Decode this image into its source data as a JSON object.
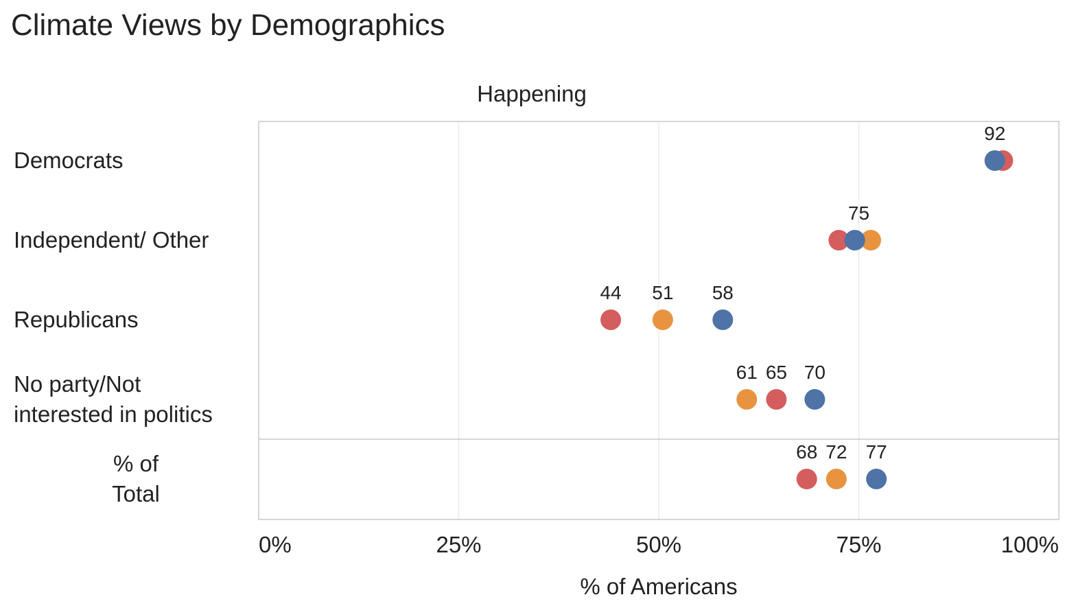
{
  "title": "Climate Views by Demographics",
  "colors": {
    "red": "#d45d5d",
    "orange": "#e89340",
    "blue": "#4e73a6",
    "grid": "#ebebeb",
    "frame": "#c8c8c8"
  },
  "chart_data": {
    "type": "scatter",
    "title": "Climate Views by Demographics",
    "panel_title": "Happening",
    "xlabel": "% of Americans",
    "xlim": [
      0,
      100
    ],
    "x_ticks": [
      "0%",
      "25%",
      "50%",
      "75%",
      "100%"
    ],
    "grid": true,
    "rows": [
      {
        "label": "Democrats",
        "points": [
          {
            "color": "red",
            "value": 93
          },
          {
            "color": "blue",
            "value": 92
          }
        ],
        "labels": [
          {
            "text": "92",
            "value": 92
          }
        ]
      },
      {
        "label": "Independent/ Other",
        "points": [
          {
            "color": "red",
            "value": 72.5
          },
          {
            "color": "orange",
            "value": 76.5
          },
          {
            "color": "blue",
            "value": 74.5
          }
        ],
        "labels": [
          {
            "text": "75",
            "value": 75
          }
        ]
      },
      {
        "label": "Republicans",
        "points": [
          {
            "color": "red",
            "value": 44
          },
          {
            "color": "orange",
            "value": 50.5
          },
          {
            "color": "blue",
            "value": 58
          }
        ],
        "labels": [
          {
            "text": "44",
            "value": 44
          },
          {
            "text": "51",
            "value": 50.5
          },
          {
            "text": "58",
            "value": 58
          }
        ]
      },
      {
        "label": "No party/Not\ninterested in politics",
        "points": [
          {
            "color": "orange",
            "value": 61
          },
          {
            "color": "red",
            "value": 64.7
          },
          {
            "color": "blue",
            "value": 69.5
          }
        ],
        "labels": [
          {
            "text": "61",
            "value": 61
          },
          {
            "text": "65",
            "value": 64.7
          },
          {
            "text": "70",
            "value": 69.5
          }
        ]
      }
    ],
    "total_row": {
      "label": "% of\nTotal",
      "points": [
        {
          "color": "red",
          "value": 68.5
        },
        {
          "color": "orange",
          "value": 72.2
        },
        {
          "color": "blue",
          "value": 77.2
        }
      ],
      "labels": [
        {
          "text": "68",
          "value": 68.5
        },
        {
          "text": "72",
          "value": 72.2
        },
        {
          "text": "77",
          "value": 77.2
        }
      ]
    }
  }
}
